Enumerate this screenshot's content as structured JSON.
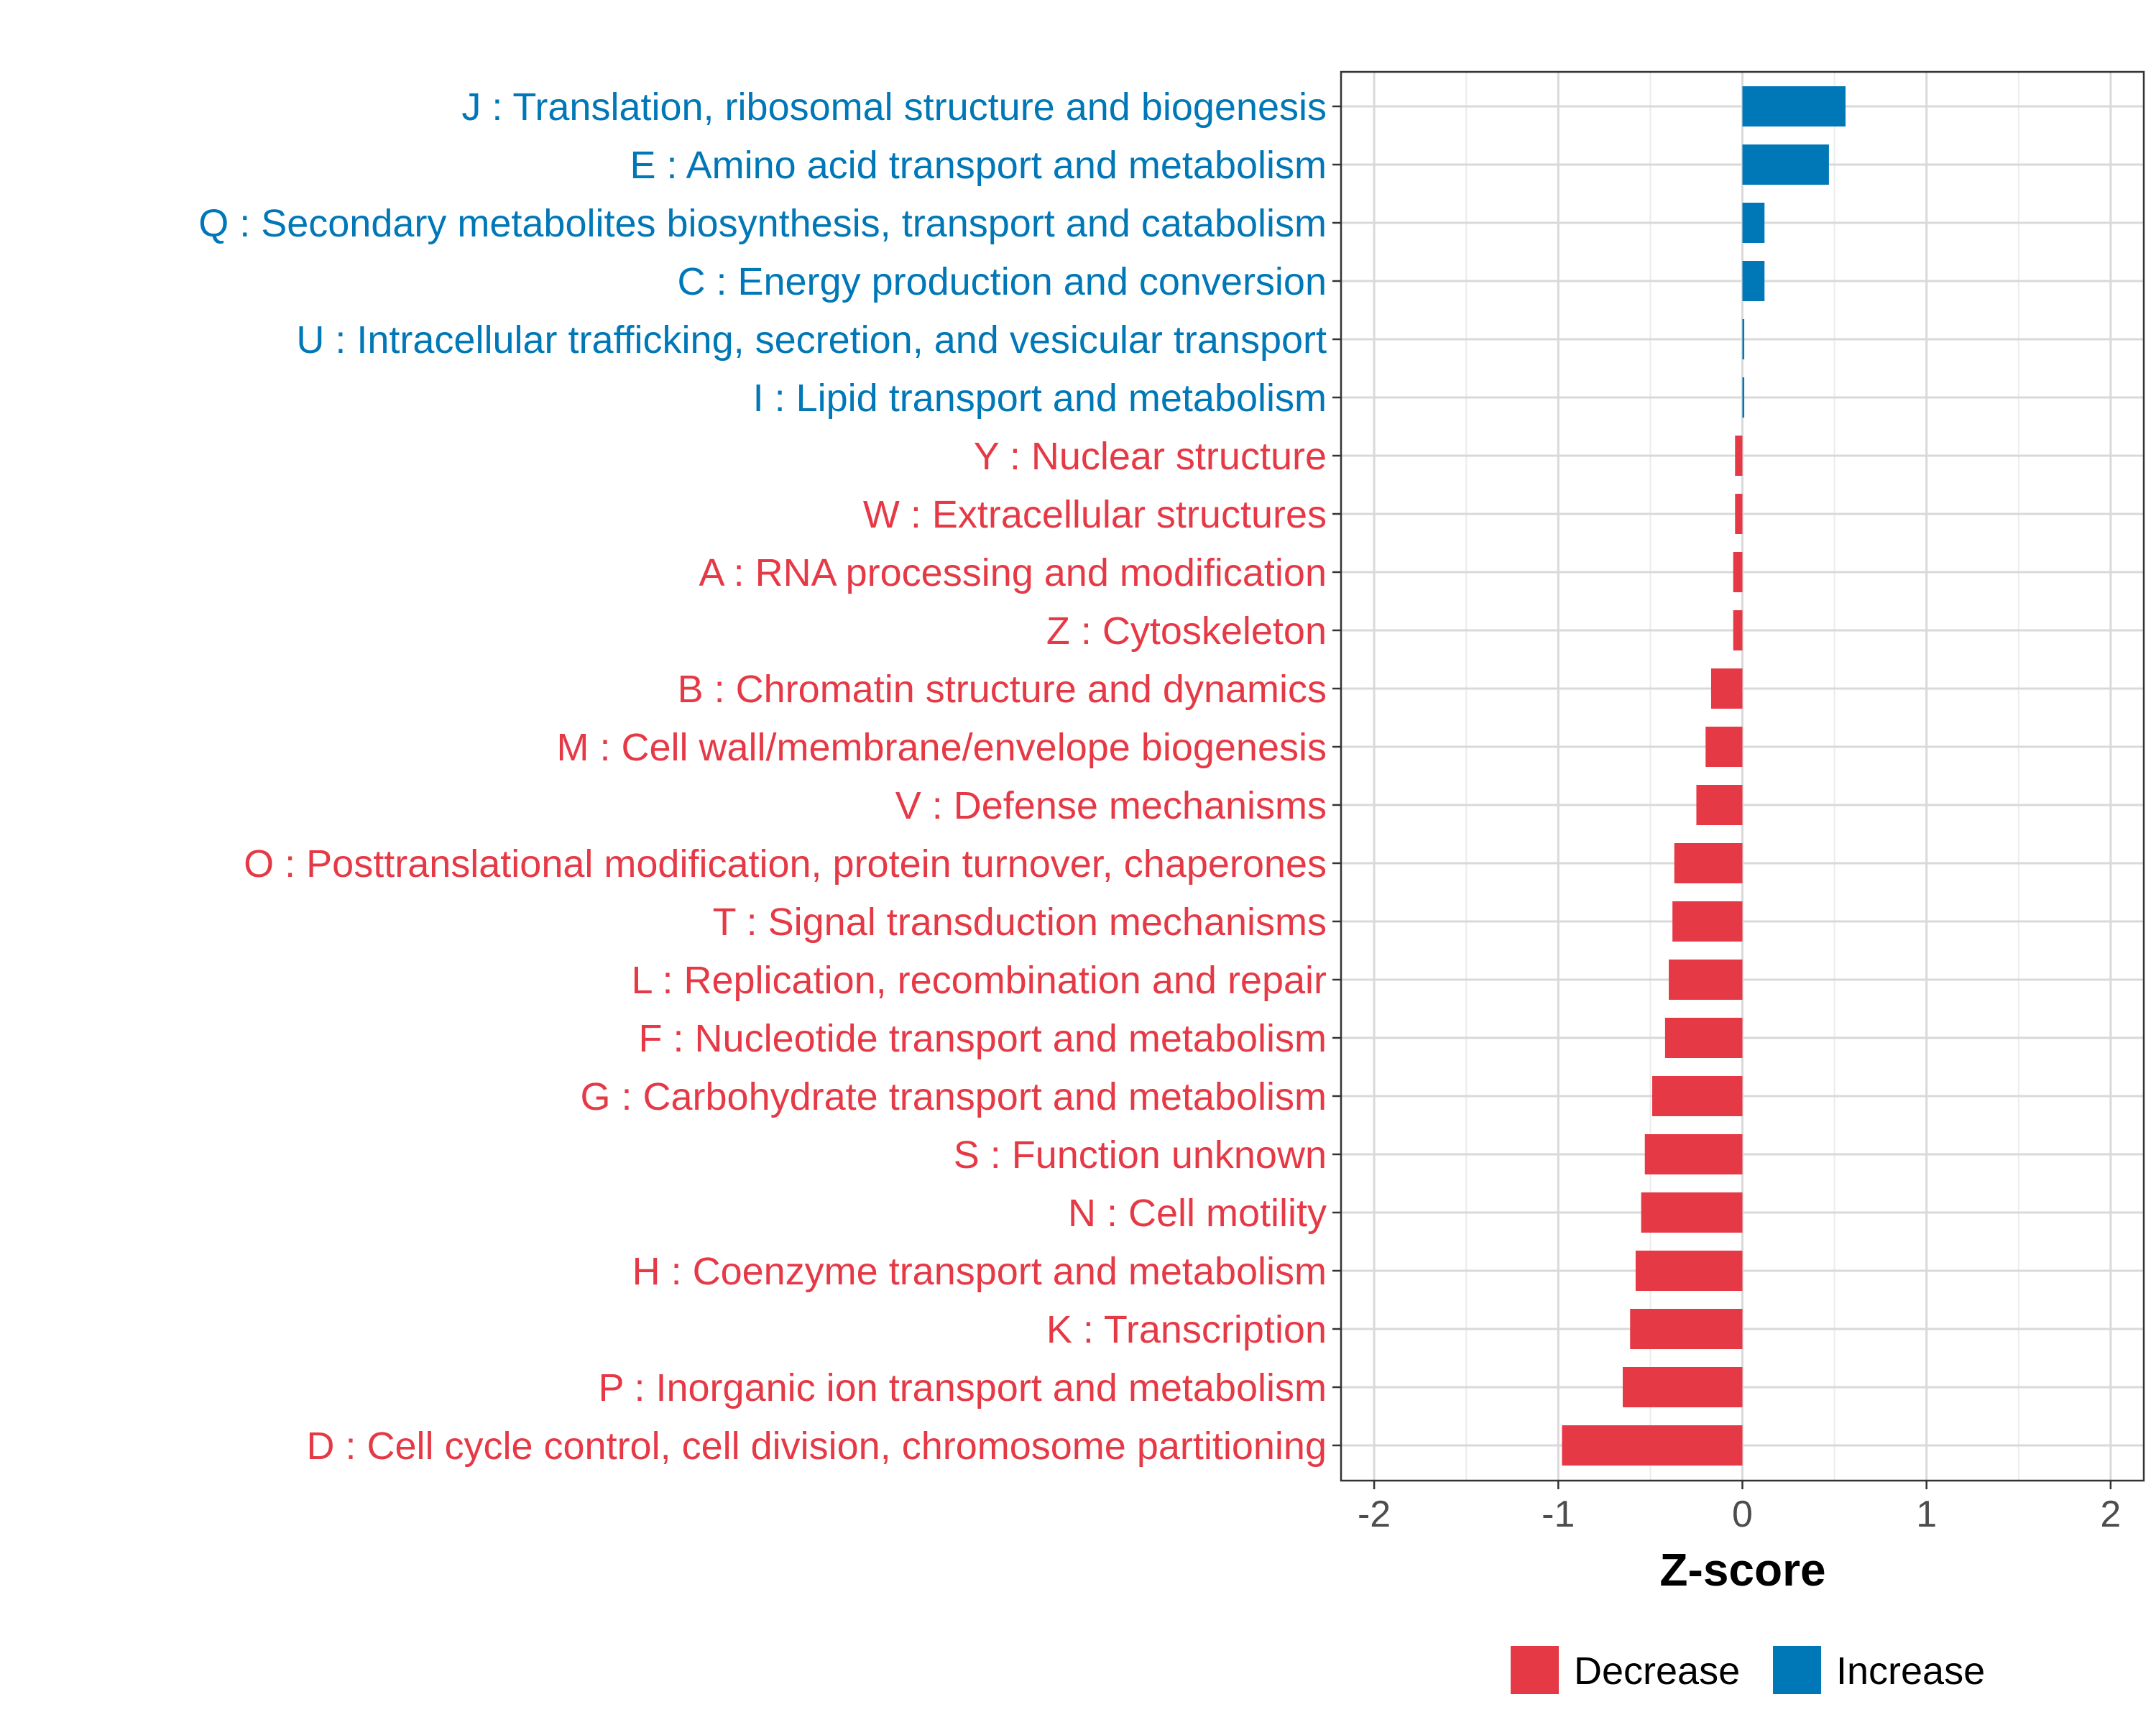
{
  "chart_data": {
    "type": "bar",
    "orientation": "horizontal",
    "xlabel": "Z-score",
    "xlim": [
      -2.18,
      2.18
    ],
    "xticks": [
      -2,
      -1,
      0,
      1,
      2
    ],
    "xtick_labels": [
      "-2",
      "-1",
      "0",
      "1",
      "2"
    ],
    "grid": true,
    "legend_position": "bottom",
    "colors": {
      "Decrease": "#E63946",
      "Increase": "#0077B6"
    },
    "legend": [
      {
        "label": "Decrease",
        "color": "#E63946"
      },
      {
        "label": "Increase",
        "color": "#0077B6"
      }
    ],
    "categories": [
      "J : Translation, ribosomal structure and biogenesis",
      "E : Amino acid transport and metabolism",
      "Q : Secondary metabolites biosynthesis, transport and catabolism",
      "C : Energy production and conversion",
      "U : Intracellular trafficking, secretion, and vesicular transport",
      "I : Lipid transport and metabolism",
      "Y : Nuclear structure",
      "W : Extracellular structures",
      "A : RNA processing and modification",
      "Z : Cytoskeleton",
      "B : Chromatin structure and dynamics",
      "M : Cell wall/membrane/envelope biogenesis",
      "V : Defense mechanisms",
      "O : Posttranslational modification, protein turnover, chaperones",
      "T : Signal transduction mechanisms",
      "L : Replication, recombination and repair",
      "F : Nucleotide transport and metabolism",
      "G : Carbohydrate transport and metabolism",
      "S : Function unknown",
      "N : Cell motility",
      "H : Coenzyme transport and metabolism",
      "K : Transcription",
      "P : Inorganic ion transport and metabolism",
      "D : Cell cycle control, cell division, chromosome partitioning"
    ],
    "values": [
      0.56,
      0.47,
      0.12,
      0.12,
      0.01,
      0.01,
      -0.04,
      -0.04,
      -0.05,
      -0.05,
      -0.17,
      -0.2,
      -0.25,
      -0.37,
      -0.38,
      -0.4,
      -0.42,
      -0.49,
      -0.53,
      -0.55,
      -0.58,
      -0.61,
      -0.65,
      -0.98
    ],
    "direction": [
      "Increase",
      "Increase",
      "Increase",
      "Increase",
      "Increase",
      "Increase",
      "Decrease",
      "Decrease",
      "Decrease",
      "Decrease",
      "Decrease",
      "Decrease",
      "Decrease",
      "Decrease",
      "Decrease",
      "Decrease",
      "Decrease",
      "Decrease",
      "Decrease",
      "Decrease",
      "Decrease",
      "Decrease",
      "Decrease",
      "Decrease"
    ]
  }
}
